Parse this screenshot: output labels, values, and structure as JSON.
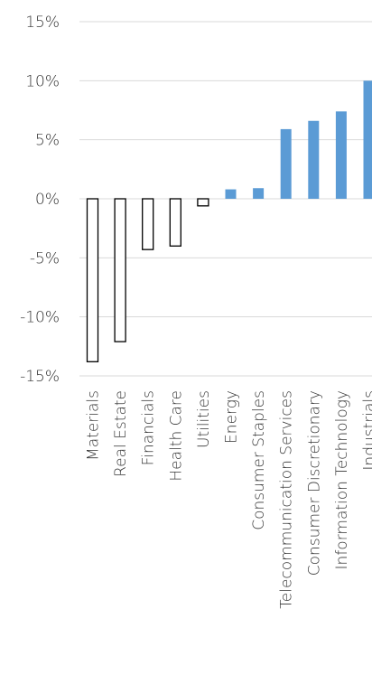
{
  "chart_data": {
    "type": "bar",
    "title": "",
    "xlabel": "",
    "ylabel": "",
    "ylim": [
      -15,
      15
    ],
    "yticks": [
      15,
      10,
      5,
      0,
      -5,
      -10,
      -15
    ],
    "ytick_labels": [
      "15%",
      "10%",
      "5%",
      "0%",
      "-5%",
      "-10%",
      "-15%"
    ],
    "grid": true,
    "categories": [
      "Materials",
      "Real Estate",
      "Financials",
      "Health Care",
      "Utilities",
      "Energy",
      "Consumer Staples",
      "Telecommunication Services",
      "Consumer Discretionary",
      "Information Technology",
      "Industrials"
    ],
    "values": [
      -13.8,
      -12.1,
      -4.3,
      -4.0,
      -0.6,
      0.8,
      0.9,
      5.9,
      6.6,
      7.4,
      10.0
    ],
    "colors": {
      "positive_fill": "#5b9bd5",
      "negative_fill": "#ffffff",
      "negative_stroke": "#000000"
    }
  }
}
